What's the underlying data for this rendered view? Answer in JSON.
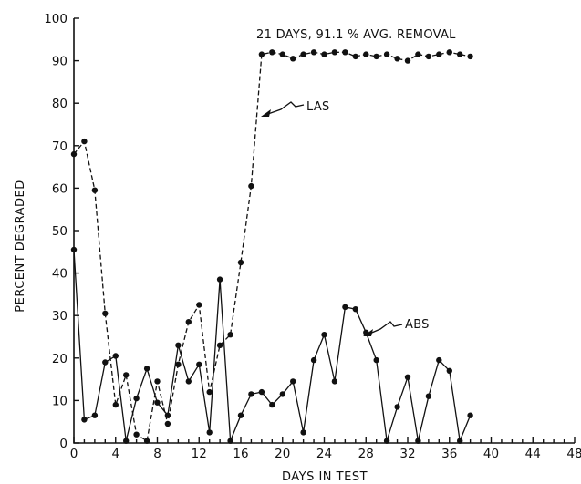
{
  "chart_data": {
    "type": "line",
    "title": "",
    "xlabel": "DAYS IN TEST",
    "ylabel": "PERCENT DEGRADED",
    "xlim": [
      0,
      48
    ],
    "ylim": [
      0,
      100
    ],
    "xticks": [
      0,
      4,
      8,
      12,
      16,
      20,
      24,
      28,
      32,
      36,
      40,
      44,
      48
    ],
    "yticks": [
      0,
      10,
      20,
      30,
      40,
      50,
      60,
      70,
      80,
      90,
      100
    ],
    "grid": false,
    "series": [
      {
        "name": "LAS",
        "style": "dashed",
        "x": [
          0,
          1,
          2,
          3,
          4,
          5,
          6,
          7,
          8,
          9,
          10,
          11,
          12,
          13,
          14,
          15,
          16,
          17,
          18,
          19,
          20,
          21,
          22,
          23,
          24,
          25,
          26,
          27,
          28,
          29,
          30,
          31,
          32,
          33,
          34,
          35,
          36,
          37,
          38
        ],
        "y": [
          68,
          71,
          59.5,
          30.5,
          9,
          16,
          2,
          0.5,
          14.5,
          4.5,
          18.5,
          28.5,
          32.5,
          12,
          23,
          25.5,
          42.5,
          60.5,
          91.5,
          92,
          91.5,
          90.5,
          91.5,
          92,
          91.5,
          92,
          92,
          91,
          91.5,
          91,
          91.5,
          90.5,
          90,
          91.5,
          91,
          91.5,
          92,
          91.5,
          91
        ]
      },
      {
        "name": "ABS",
        "style": "solid",
        "x": [
          0,
          1,
          2,
          3,
          4,
          5,
          6,
          7,
          8,
          9,
          10,
          11,
          12,
          13,
          14,
          15,
          16,
          17,
          18,
          19,
          20,
          21,
          22,
          23,
          24,
          25,
          26,
          27,
          28,
          29,
          30,
          31,
          32,
          33,
          34,
          35,
          36,
          37,
          38
        ],
        "y": [
          45.5,
          5.5,
          6.5,
          19,
          20.5,
          0.5,
          10.5,
          17.5,
          9.5,
          6.5,
          23,
          14.5,
          18.5,
          2.5,
          38.5,
          0.5,
          6.5,
          11.5,
          12,
          9,
          11.5,
          14.5,
          2.5,
          19.5,
          25.5,
          14.5,
          32,
          31.5,
          26,
          19.5,
          0.5,
          8.5,
          15.5,
          0.5,
          11,
          19.5,
          17,
          0.5,
          6.5
        ]
      }
    ],
    "annotations": [
      {
        "text": "21 DAYS, 91.1 % AVG. REMOVAL"
      },
      {
        "text": "LAS",
        "points_to_series": "LAS"
      },
      {
        "text": "ABS",
        "points_to_series": "ABS"
      }
    ]
  }
}
